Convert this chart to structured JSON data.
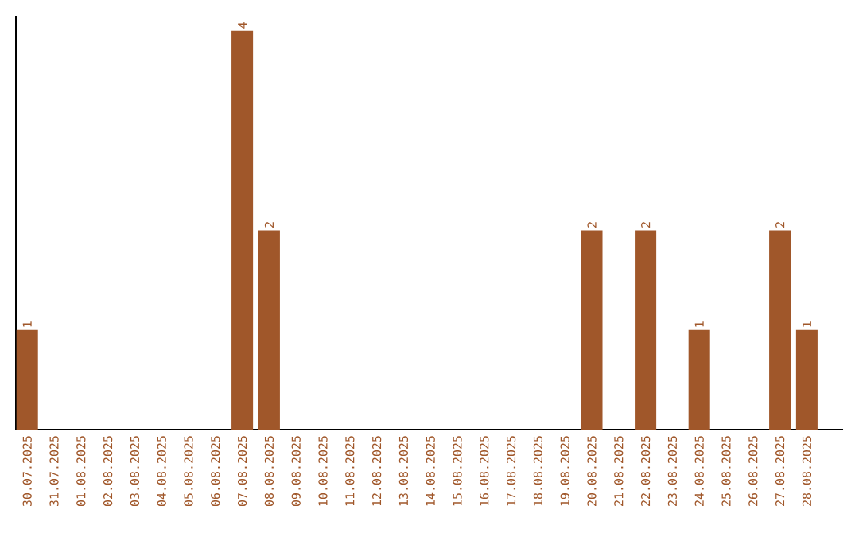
{
  "chart_data": {
    "type": "bar",
    "categories": [
      "30.07.2025",
      "31.07.2025",
      "01.08.2025",
      "02.08.2025",
      "03.08.2025",
      "04.08.2025",
      "05.08.2025",
      "06.08.2025",
      "07.08.2025",
      "08.08.2025",
      "09.08.2025",
      "10.08.2025",
      "11.08.2025",
      "12.08.2025",
      "13.08.2025",
      "14.08.2025",
      "15.08.2025",
      "16.08.2025",
      "17.08.2025",
      "18.08.2025",
      "19.08.2025",
      "20.08.2025",
      "21.08.2025",
      "22.08.2025",
      "23.08.2025",
      "24.08.2025",
      "25.08.2025",
      "26.08.2025",
      "27.08.2025",
      "28.08.2025"
    ],
    "values": [
      1,
      0,
      0,
      0,
      0,
      0,
      0,
      0,
      4,
      2,
      0,
      0,
      0,
      0,
      0,
      0,
      0,
      0,
      0,
      0,
      0,
      2,
      0,
      2,
      0,
      1,
      0,
      0,
      2,
      1
    ],
    "value_labels": [
      "1",
      null,
      null,
      null,
      null,
      null,
      null,
      null,
      "4",
      "2",
      null,
      null,
      null,
      null,
      null,
      null,
      null,
      null,
      null,
      null,
      null,
      "2",
      null,
      "2",
      null,
      "1",
      null,
      null,
      "2",
      "1"
    ],
    "color": "#a0572a",
    "ylim": [
      0,
      4.15
    ],
    "tick_labels": "x"
  }
}
